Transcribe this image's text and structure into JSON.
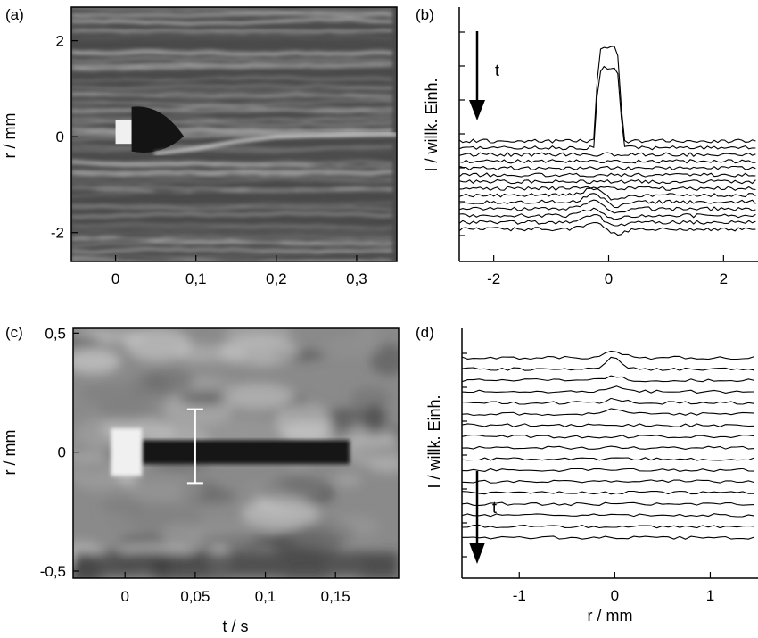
{
  "panel_labels": [
    "(a)",
    "(b)",
    "(c)",
    "(d)"
  ],
  "colors": {
    "image_dark": "#141414",
    "image_mid": "#6e6e6e",
    "image_light": "#f0f0f0",
    "trace": "#000000",
    "axis": "#000000",
    "errorbar": "#ffffff"
  },
  "chart_data": [
    {
      "panel": "(a)",
      "type": "heatmap",
      "xlabel": "",
      "ylabel": "r / mm",
      "xlim": [
        -0.055,
        0.35
      ],
      "ylim": [
        -2.6,
        2.7
      ],
      "xticks": [
        0,
        0.1,
        0.2,
        0.3
      ],
      "xtick_labels": [
        "0",
        "0,1",
        "0,2",
        "0,3"
      ],
      "yticks": [
        2,
        0,
        -2
      ],
      "ytick_labels": [
        "2",
        "0",
        "-2"
      ],
      "features": {
        "bright_pulse": {
          "t": [
            0,
            0.02
          ],
          "r": [
            -0.15,
            0.35
          ]
        },
        "dark_cavity_center_t": 0.035,
        "bright_streak": [
          [
            0.05,
            -0.35
          ],
          [
            0.1,
            -0.25
          ],
          [
            0.15,
            -0.1
          ],
          [
            0.2,
            0.0
          ],
          [
            0.26,
            0.03
          ],
          [
            0.35,
            0.05
          ]
        ]
      }
    },
    {
      "panel": "(b)",
      "type": "line",
      "xlabel": "",
      "ylabel": "I / willk. Einh.",
      "xlim": [
        -2.6,
        2.6
      ],
      "xticks": [
        -2,
        0,
        2
      ],
      "xtick_labels": [
        "-2",
        "0",
        "2"
      ],
      "arrow_label": "t",
      "series_count": 14,
      "peak": {
        "center": 0,
        "width": 0.5,
        "height_traces": 1.0,
        "secondary_height": 0.95
      },
      "dip": {
        "center": -0.2,
        "width": 0.6
      }
    },
    {
      "panel": "(c)",
      "type": "heatmap",
      "xlabel": "t / s",
      "ylabel": "r / mm",
      "xlim": [
        -0.037,
        0.195
      ],
      "ylim": [
        -0.53,
        0.52
      ],
      "xticks": [
        0,
        0.05,
        0.1,
        0.15
      ],
      "xtick_labels": [
        "0",
        "0,05",
        "0,1",
        "0,15"
      ],
      "yticks": [
        0.5,
        0,
        -0.5
      ],
      "ytick_labels": [
        "0,5",
        "0",
        "-0,5"
      ],
      "errorbar": {
        "t": 0.05,
        "r_min": -0.13,
        "r_max": 0.18
      },
      "features": {
        "bright_pulse": {
          "t": [
            -0.01,
            0.012
          ],
          "r": [
            -0.1,
            0.1
          ]
        },
        "dark_band": {
          "t": [
            0.012,
            0.16
          ],
          "r": [
            -0.05,
            0.05
          ]
        }
      }
    },
    {
      "panel": "(d)",
      "type": "line",
      "xlabel": "r / mm",
      "ylabel": "I / willk. Einh.",
      "xlim": [
        -1.6,
        1.5
      ],
      "xticks": [
        -1,
        0,
        1
      ],
      "xtick_labels": [
        "-1",
        "0",
        "1"
      ],
      "arrow_label": "t",
      "series_count": 17,
      "peak": {
        "center": 0,
        "width": 0.25
      }
    }
  ]
}
